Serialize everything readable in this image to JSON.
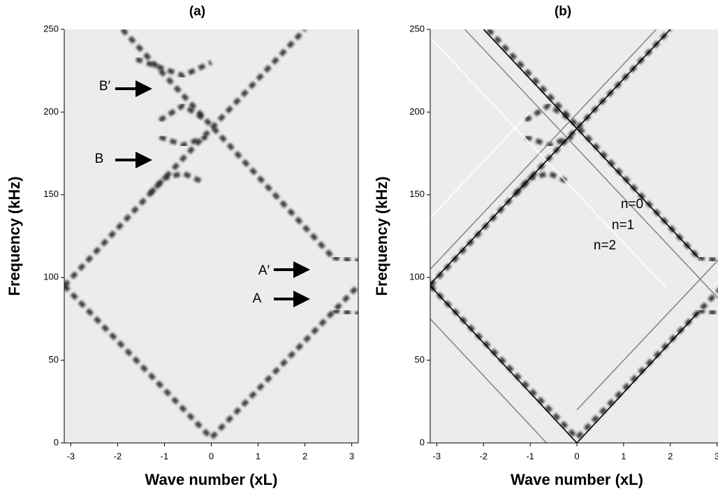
{
  "chart_data": [
    {
      "type": "line",
      "title": "(a)",
      "xlabel": "Wave number (xL)",
      "ylabel": "Frequency (kHz)",
      "xlim": [
        -3.14,
        3.14
      ],
      "ylim": [
        0,
        250
      ],
      "xticks": [
        -3,
        -2,
        -1,
        0,
        1,
        2,
        3
      ],
      "yticks": [
        0,
        50,
        100,
        150,
        200,
        250
      ],
      "series": [
        {
          "style": "band",
          "color": "#222222",
          "x": [
            -3.14,
            0,
            3.14
          ],
          "values": [
            95,
            3,
            95
          ]
        },
        {
          "style": "band",
          "color": "#222222",
          "x": [
            -3.14,
            -1,
            -0.6,
            -0.2
          ],
          "values": [
            95,
            160,
            163,
            158
          ]
        },
        {
          "style": "band",
          "color": "#222222",
          "x": [
            -1.3,
            2
          ],
          "values": [
            151,
            250
          ]
        },
        {
          "style": "band",
          "color": "#222222",
          "x": [
            -1.9,
            2.6
          ],
          "values": [
            250,
            112
          ]
        },
        {
          "style": "band",
          "color": "#222222",
          "x": [
            -1.1,
            -0.6,
            -0.1
          ],
          "values": [
            195,
            204,
            195
          ]
        },
        {
          "style": "band",
          "color": "#222222",
          "x": [
            -1.1,
            -0.6,
            -0.1
          ],
          "values": [
            185,
            180,
            185
          ]
        },
        {
          "style": "band",
          "color": "#222222",
          "x": [
            -1.6,
            -0.6,
            0
          ],
          "values": [
            232,
            222,
            230
          ]
        },
        {
          "style": "band",
          "color": "#222222",
          "x": [
            2.6,
            3.14
          ],
          "values": [
            112,
            110
          ]
        },
        {
          "style": "band",
          "color": "#222222",
          "x": [
            2.5,
            3.14
          ],
          "values": [
            97,
            97
          ]
        },
        {
          "style": "band",
          "color": "#222222",
          "x": [
            2.6,
            3.14
          ],
          "values": [
            80,
            78
          ]
        }
      ],
      "annotations": [
        "B′",
        "B",
        "A′",
        "A"
      ]
    },
    {
      "type": "line",
      "title": "(b)",
      "xlabel": "Wave number (xL)",
      "ylabel": "Frequency (kHz)",
      "xlim": [
        -3.14,
        3.14
      ],
      "ylim": [
        0,
        250
      ],
      "xticks": [
        -3,
        -2,
        -1,
        0,
        1,
        2,
        3
      ],
      "yticks": [
        0,
        50,
        100,
        150,
        200,
        250
      ],
      "series": [
        {
          "style": "band",
          "color": "#222222",
          "x": [
            -3.14,
            0,
            3.14
          ],
          "values": [
            95,
            3,
            95
          ]
        },
        {
          "style": "band",
          "color": "#222222",
          "x": [
            -3.14,
            -1,
            -0.6,
            -0.2
          ],
          "values": [
            95,
            160,
            163,
            158
          ]
        },
        {
          "style": "band",
          "color": "#222222",
          "x": [
            -1.3,
            2
          ],
          "values": [
            151,
            250
          ]
        },
        {
          "style": "band",
          "color": "#222222",
          "x": [
            -1.9,
            2.6
          ],
          "values": [
            250,
            112
          ]
        },
        {
          "style": "band",
          "color": "#222222",
          "x": [
            -1.1,
            -0.6,
            -0.1
          ],
          "values": [
            195,
            204,
            195
          ]
        },
        {
          "style": "band",
          "color": "#222222",
          "x": [
            -1.1,
            -0.6,
            -0.1
          ],
          "values": [
            185,
            180,
            185
          ]
        },
        {
          "style": "band",
          "color": "#222222",
          "x": [
            2.6,
            3.14
          ],
          "values": [
            112,
            110
          ]
        },
        {
          "style": "band",
          "color": "#222222",
          "x": [
            2.6,
            3.14
          ],
          "values": [
            80,
            78
          ]
        },
        {
          "style": "line",
          "color": "#888888",
          "x": [
            -3.14,
            -0.65
          ],
          "values": [
            75,
            0
          ]
        },
        {
          "style": "line",
          "color": "#888888",
          "x": [
            0,
            3.14
          ],
          "values": [
            20,
            114
          ]
        },
        {
          "style": "line",
          "color": "#888888",
          "x": [
            -3.14,
            1.7
          ],
          "values": [
            105,
            250
          ]
        },
        {
          "style": "line",
          "color": "#888888",
          "x": [
            -2.4,
            3.14
          ],
          "values": [
            250,
            84
          ]
        },
        {
          "style": "line",
          "color": "#ffffff",
          "x": [
            -3.14,
            1.9
          ],
          "values": [
            245,
            94
          ]
        },
        {
          "style": "line",
          "color": "#ffffff",
          "x": [
            -3.14,
            -1
          ],
          "values": [
            136,
            200
          ]
        },
        {
          "style": "line",
          "color": "#000000",
          "x": [
            -3.14,
            0,
            2.6
          ],
          "values": [
            95,
            0,
            79
          ]
        },
        {
          "style": "line",
          "color": "#000000",
          "x": [
            -3.14,
            2
          ],
          "values": [
            96,
            250
          ]
        },
        {
          "style": "line",
          "color": "#000000",
          "x": [
            -2,
            2.6
          ],
          "values": [
            250,
            112
          ]
        }
      ],
      "annotations": [
        "n=0",
        "n=1",
        "n=2"
      ]
    }
  ]
}
